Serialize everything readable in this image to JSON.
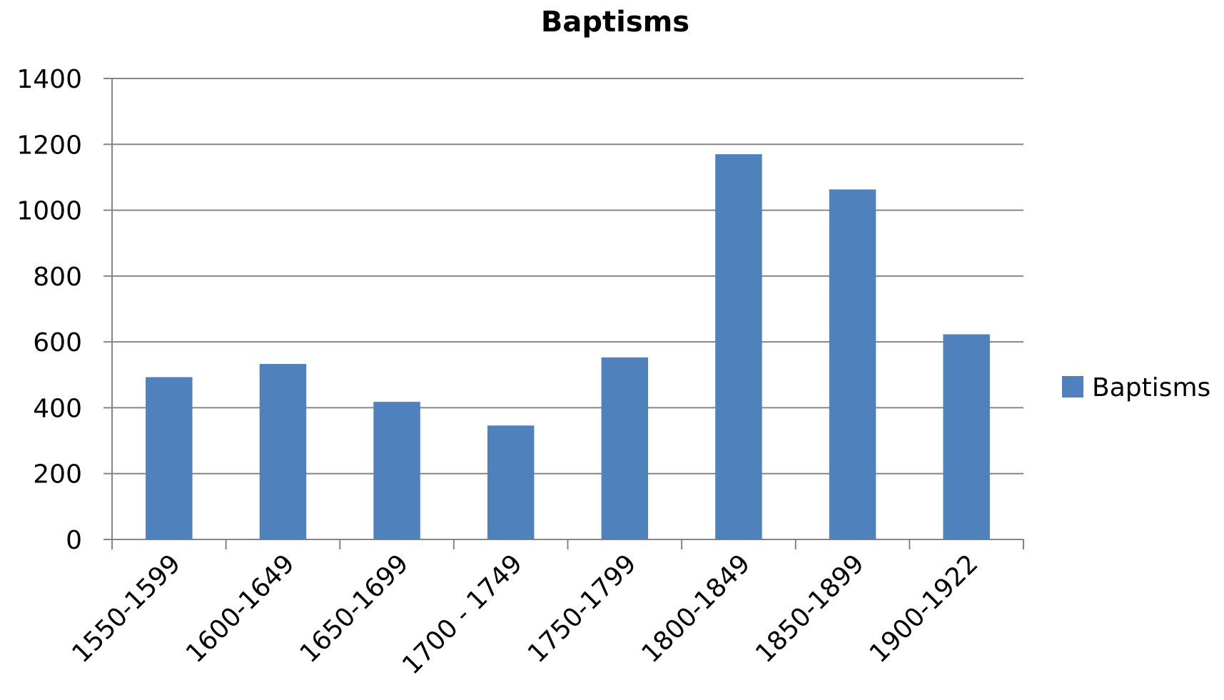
{
  "chart_data": {
    "type": "bar",
    "title": "Baptisms",
    "xlabel": "",
    "ylabel": "",
    "categories": [
      "1550-1599",
      "1600-1649",
      "1650-1699",
      "1700 - 1749",
      "1750-1799",
      "1800-1849",
      "1850-1899",
      "1900-1922"
    ],
    "series": [
      {
        "name": "Baptisms",
        "values": [
          493,
          533,
          418,
          346,
          553,
          1170,
          1063,
          623
        ],
        "color": "#4f81bd"
      }
    ],
    "ylim": [
      0,
      1400
    ],
    "yticks": [
      0,
      200,
      400,
      600,
      800,
      1000,
      1200,
      1400
    ],
    "grid": true,
    "legend_position": "right",
    "colors": {
      "bar": "#4f81bd",
      "grid": "#868686",
      "axis": "#868686",
      "text": "#000000"
    }
  }
}
